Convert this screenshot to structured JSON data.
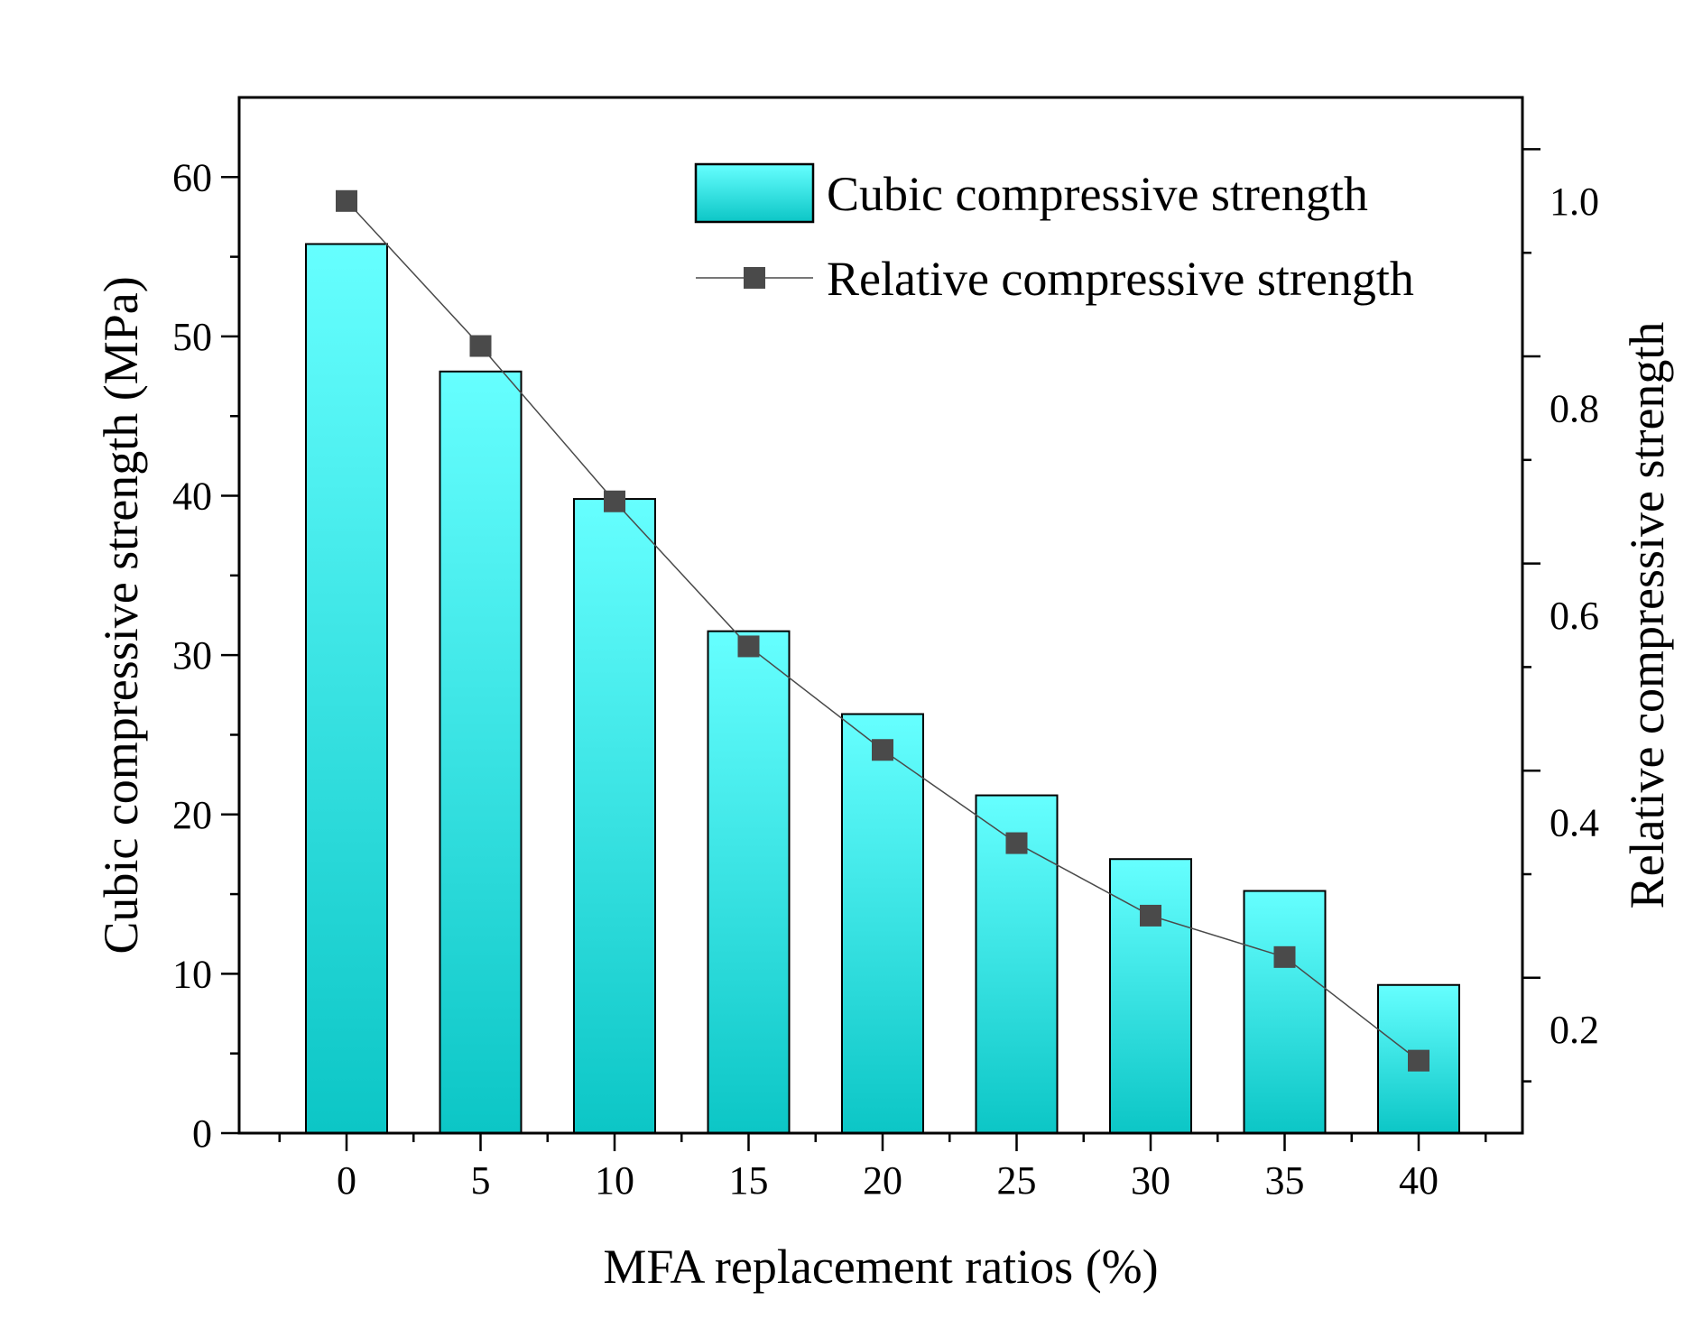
{
  "chart_data": {
    "type": "bar+line",
    "title": "",
    "xlabel": "MFA replacement ratios (%)",
    "ylabel": "Cubic compressive strength (MPa)",
    "y2label": "Relative compressive strength",
    "categories": [
      "0",
      "5",
      "10",
      "15",
      "20",
      "25",
      "30",
      "35",
      "40"
    ],
    "ylim": [
      0,
      65
    ],
    "y2lim": [
      0.1,
      1.1
    ],
    "yticks": [
      "0",
      "10",
      "20",
      "30",
      "40",
      "50",
      "60"
    ],
    "y2ticks": [
      "0.2",
      "0.4",
      "0.6",
      "0.8",
      "1.0"
    ],
    "legend_position": "top-right",
    "series": [
      {
        "name": "Cubic compressive strength",
        "type": "bar",
        "axis": "left",
        "values": [
          55.8,
          47.8,
          39.8,
          31.5,
          26.3,
          21.2,
          17.2,
          15.2,
          9.3
        ],
        "color_top": "#66ffff",
        "color_bottom": "#0cc6c6"
      },
      {
        "name": "Relative compressive strength",
        "type": "line",
        "axis": "right",
        "values": [
          1.0,
          0.86,
          0.71,
          0.57,
          0.47,
          0.38,
          0.31,
          0.27,
          0.17
        ],
        "color": "#4a4a4a"
      }
    ]
  }
}
